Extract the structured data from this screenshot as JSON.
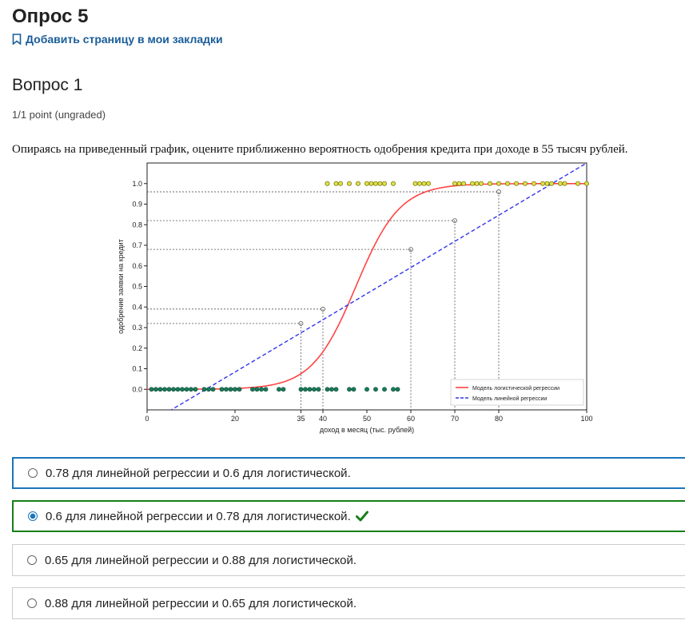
{
  "page": {
    "title": "Опрос 5",
    "bookmark_label": "Добавить страницу в мои закладки"
  },
  "question": {
    "title": "Вопрос 1",
    "points": "1/1 point (ungraded)",
    "prompt": "Опираясь на приведенный график, оцените приближенно вероятность одобрения кредита при доходе в 55 тысяч рублей."
  },
  "options": [
    {
      "text": "0.78 для линейной регрессии и 0.6 для логистической.",
      "selected": false,
      "state": "focused"
    },
    {
      "text": "0.6 для линейной регрессии и 0.78 для логистической.",
      "selected": true,
      "state": "correct"
    },
    {
      "text": "0.65 для линейной регрессии и 0.88 для логистической.",
      "selected": false,
      "state": "normal"
    },
    {
      "text": "0.88 для линейной регрессии и 0.65 для логистической.",
      "selected": false,
      "state": "normal"
    }
  ],
  "colors": {
    "link": "#1a5d99",
    "focus_border": "#1b75bb",
    "correct": "#178017",
    "logistic": "#ff4444",
    "linear": "#3333ee",
    "approved_points": "#e0e04a",
    "rejected_points": "#1a7a5a"
  },
  "chart_data": {
    "type": "scatter",
    "xlabel": "доход в месяц (тыс. рублей)",
    "ylabel": "одобрение заявки на кредит",
    "xlim": [
      0,
      100
    ],
    "ylim": [
      -0.1,
      1.1
    ],
    "xticks": [
      0,
      20,
      35,
      40,
      50,
      60,
      70,
      80,
      100
    ],
    "yticks": [
      0.0,
      0.1,
      0.2,
      0.3,
      0.4,
      0.5,
      0.6,
      0.7,
      0.8,
      0.9,
      1.0
    ],
    "legend": [
      "Модель логистической регрессии",
      "Модель линейной регрессии"
    ],
    "legend_position": "lower-right",
    "rejected_x": [
      1,
      2,
      3,
      4,
      5,
      6,
      7,
      8,
      9,
      10,
      11,
      13,
      14,
      15,
      17,
      18,
      19,
      20,
      21,
      24,
      25,
      26,
      27,
      30,
      31,
      35,
      36,
      37,
      38,
      39,
      41,
      42,
      43,
      46,
      47,
      50,
      52,
      54,
      56,
      57
    ],
    "approved_x": [
      41,
      43,
      44,
      46,
      48,
      50,
      51,
      52,
      53,
      54,
      56,
      61,
      62,
      63,
      64,
      70,
      71,
      72,
      74,
      75,
      76,
      78,
      80,
      82,
      84,
      86,
      88,
      90,
      91,
      92,
      94,
      95,
      98,
      100
    ],
    "logistic": {
      "midpoint": 47.5,
      "steepness": 0.2
    },
    "linear": {
      "slope": 0.0127,
      "intercept": -0.17
    },
    "reference_points": [
      {
        "x": 35,
        "y": 0.32
      },
      {
        "x": 40,
        "y": 0.39
      },
      {
        "x": 60,
        "y": 0.68
      },
      {
        "x": 70,
        "y": 0.82
      },
      {
        "x": 80,
        "y": 0.96
      }
    ]
  }
}
